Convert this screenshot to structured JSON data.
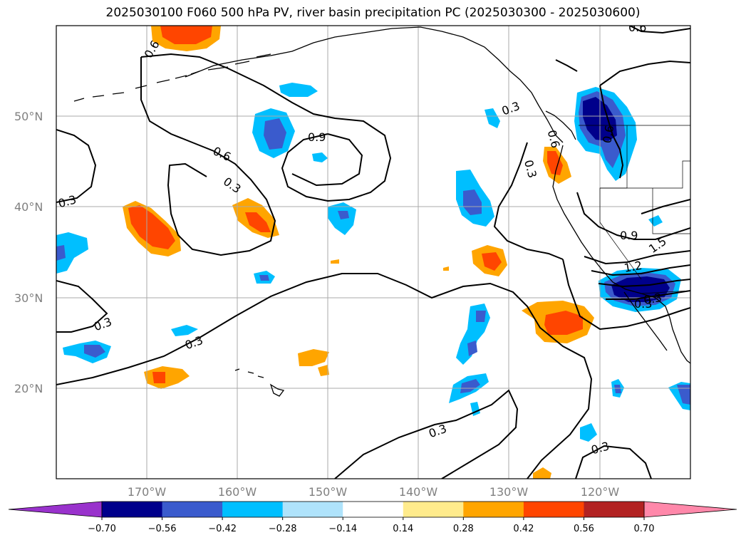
{
  "title": "2025030100 F060 500 hPa PV, river basin precipitation PC (2025030300 - 2025030600)",
  "map": {
    "projection": "PlateCarree",
    "lon_range": [
      -180,
      -110
    ],
    "lat_range": [
      10,
      60
    ],
    "gridlines": true,
    "lat_ticks": [
      {
        "value": 20,
        "label": "20°N"
      },
      {
        "value": 30,
        "label": "30°N"
      },
      {
        "value": 40,
        "label": "40°N"
      },
      {
        "value": 50,
        "label": "50°N"
      }
    ],
    "lon_ticks": [
      {
        "value": -170,
        "label": "170°W"
      },
      {
        "value": -160,
        "label": "160°W"
      },
      {
        "value": -150,
        "label": "150°W"
      },
      {
        "value": -140,
        "label": "140°W"
      },
      {
        "value": -130,
        "label": "130°W"
      },
      {
        "value": -120,
        "label": "120°W"
      }
    ],
    "contour_labels": [
      "0.6",
      "0.6",
      "0.3",
      "0.9",
      "0.6",
      "0.3",
      "0.3",
      "0.6",
      "0.3",
      "0.6",
      "0.9",
      "1.5",
      "1.2",
      "0.3",
      "0.3",
      "0.3",
      "0.3",
      "0.3",
      "0.3"
    ]
  },
  "colorbar": {
    "extend": "both",
    "under_color": "#9932cc",
    "over_color": "#ff88aa",
    "colors": [
      "#00008b",
      "#3a5bcd",
      "#00bfff",
      "#afe3fb",
      "#ffffff",
      "#ffeb8c",
      "#ffa500",
      "#ff4500",
      "#b22222"
    ],
    "tick_labels": [
      "−0.70",
      "−0.56",
      "−0.42",
      "−0.28",
      "−0.14",
      "0.14",
      "0.28",
      "0.42",
      "0.56",
      "0.70"
    ]
  }
}
